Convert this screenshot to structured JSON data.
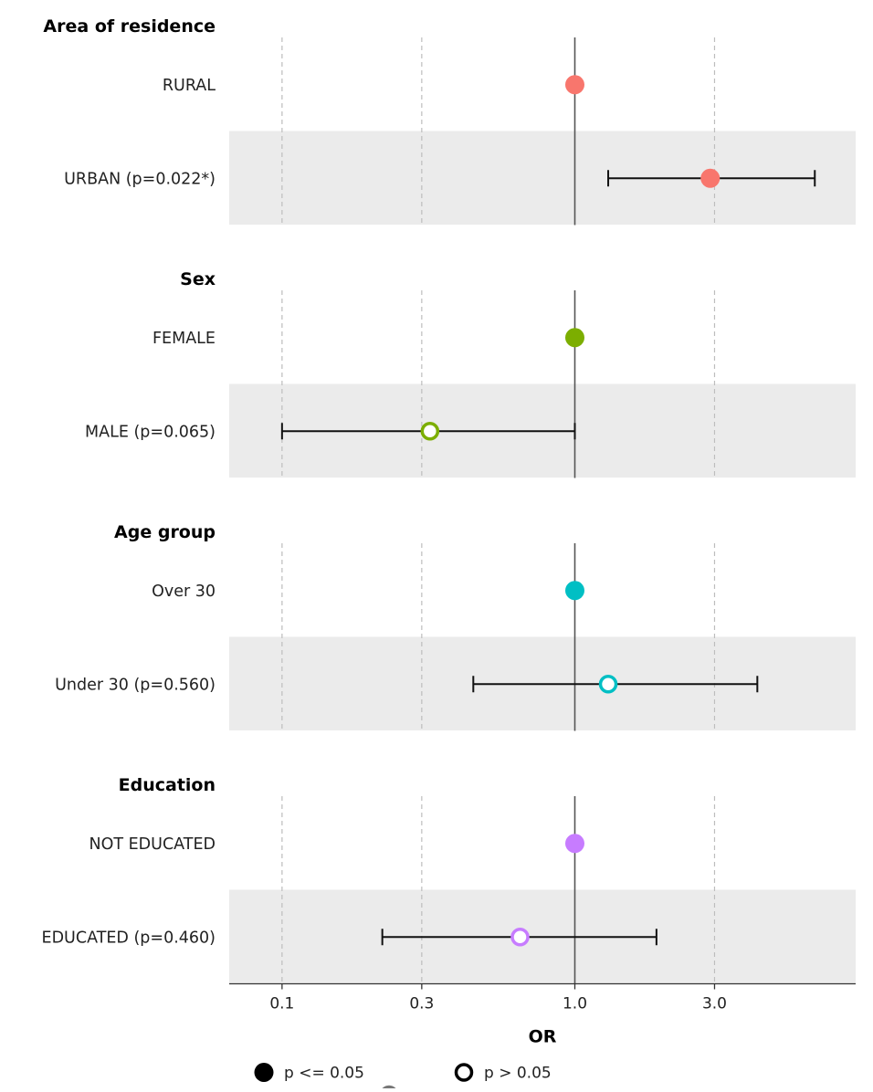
{
  "chart_data": {
    "type": "forest",
    "xlabel": "OR",
    "x_scale": "log",
    "xlim": [
      0.066,
      9.1
    ],
    "x_ticks": [
      "0.1",
      "0.3",
      "1.0",
      "3.0"
    ],
    "x_tick_values": [
      0.1,
      0.3,
      1.0,
      3.0
    ],
    "reference_line": 1.0,
    "grid": "vertical dashed at ticks",
    "groups": [
      {
        "title": "Area of residence",
        "color": "#F8766D",
        "rows": [
          {
            "label": "RURAL",
            "or": 1.0,
            "lo": null,
            "hi": null,
            "significant": true,
            "reference": true
          },
          {
            "label": "URBAN (p=0.022*)",
            "or": 2.9,
            "lo": 1.3,
            "hi": 6.6,
            "significant": true,
            "reference": false
          }
        ]
      },
      {
        "title": "Sex",
        "color": "#7CAE00",
        "rows": [
          {
            "label": "FEMALE",
            "or": 1.0,
            "lo": null,
            "hi": null,
            "significant": true,
            "reference": true
          },
          {
            "label": "MALE (p=0.065)",
            "or": 0.32,
            "lo": 0.1,
            "hi": 1.0,
            "significant": false,
            "reference": false
          }
        ]
      },
      {
        "title": "Age group",
        "color": "#00BFC4",
        "rows": [
          {
            "label": "Over 30",
            "or": 1.0,
            "lo": null,
            "hi": null,
            "significant": true,
            "reference": true
          },
          {
            "label": "Under 30 (p=0.560)",
            "or": 1.3,
            "lo": 0.45,
            "hi": 4.2,
            "significant": false,
            "reference": false
          }
        ]
      },
      {
        "title": "Education",
        "color": "#C77CFF",
        "rows": [
          {
            "label": "NOT EDUCATED",
            "or": 1.0,
            "lo": null,
            "hi": null,
            "significant": true,
            "reference": true
          },
          {
            "label": "EDUCATED (p=0.460)",
            "or": 0.65,
            "lo": 0.22,
            "hi": 1.9,
            "significant": false,
            "reference": false
          }
        ]
      }
    ],
    "legend": {
      "position": "bottom",
      "items": [
        {
          "label": "p <= 0.05",
          "filled": true
        },
        {
          "label": "p > 0.05",
          "filled": false
        }
      ]
    }
  }
}
